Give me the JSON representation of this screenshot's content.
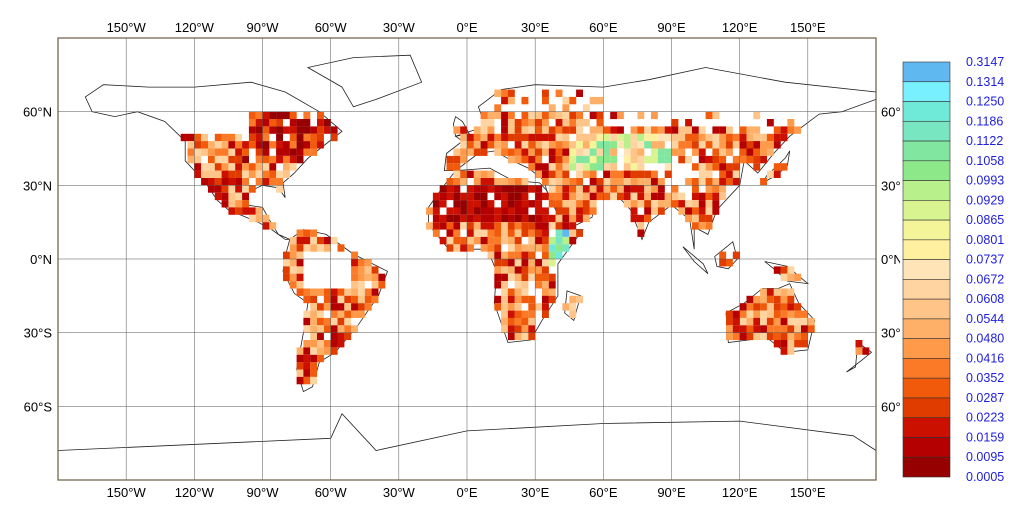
{
  "map": {
    "projection": "equirectangular",
    "lon_range": [
      -180,
      180
    ],
    "lat_range": [
      -90,
      90
    ],
    "grid": true,
    "top_lon_labels": [
      "150°W",
      "120°W",
      "90°W",
      "60°W",
      "30°W",
      "0°E",
      "30°E",
      "60°E",
      "90°E",
      "120°E",
      "150°E"
    ],
    "bottom_lon_labels": [
      "150°W",
      "120°W",
      "90°W",
      "60°W",
      "30°W",
      "0°E",
      "30°E",
      "60°E",
      "90°E",
      "120°E",
      "150°E"
    ],
    "left_lat_labels": [
      "60°N",
      "30°N",
      "0°N",
      "30°S",
      "60°S"
    ],
    "right_lat_labels": [
      "60°",
      "30°",
      "0°N",
      "30°",
      "60°"
    ],
    "label_color": "#000000"
  },
  "colorbar": {
    "labels": [
      "0.3147",
      "0.1314",
      "0.1250",
      "0.1186",
      "0.1122",
      "0.1058",
      "0.0993",
      "0.0929",
      "0.0865",
      "0.0801",
      "0.0737",
      "0.0672",
      "0.0608",
      "0.0544",
      "0.0480",
      "0.0416",
      "0.0352",
      "0.0287",
      "0.0223",
      "0.0159",
      "0.0095",
      "0.0005"
    ],
    "colors": [
      "#60b8f0",
      "#78f0ff",
      "#70ead8",
      "#78e6c0",
      "#80e6a0",
      "#8ce888",
      "#b8f08c",
      "#d8f490",
      "#f4f498",
      "#fff0a0",
      "#ffe4b8",
      "#ffd4a0",
      "#ffc488",
      "#ffb068",
      "#ff9a4a",
      "#fa7a28",
      "#f05a0a",
      "#e03c00",
      "#cc1000",
      "#b40000",
      "#960000"
    ],
    "label_color": "#2020e0"
  }
}
